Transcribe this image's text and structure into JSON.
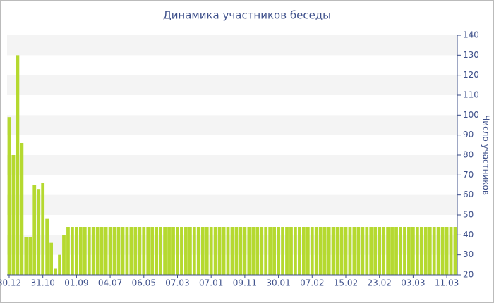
{
  "chart_data": {
    "type": "bar",
    "title": "Динамика участников беседы",
    "y_label": "Число участников",
    "categories": [
      "30.12",
      null,
      null,
      null,
      null,
      null,
      null,
      null,
      "31.10",
      null,
      null,
      null,
      null,
      null,
      null,
      null,
      "01.09",
      null,
      null,
      null,
      null,
      null,
      null,
      null,
      "04.07",
      null,
      null,
      null,
      null,
      null,
      null,
      null,
      "06.05",
      null,
      null,
      null,
      null,
      null,
      null,
      null,
      "07.03",
      null,
      null,
      null,
      null,
      null,
      null,
      null,
      "07.01",
      null,
      null,
      null,
      null,
      null,
      null,
      null,
      "09.11",
      null,
      null,
      null,
      null,
      null,
      null,
      null,
      "30.01",
      null,
      null,
      null,
      null,
      null,
      null,
      null,
      "07.02",
      null,
      null,
      null,
      null,
      null,
      null,
      null,
      "15.02",
      null,
      null,
      null,
      null,
      null,
      null,
      null,
      "23.02",
      null,
      null,
      null,
      null,
      null,
      null,
      null,
      "03.03",
      null,
      null,
      null,
      null,
      null,
      null,
      null,
      "11.03",
      null,
      null
    ],
    "values": [
      99,
      80,
      130,
      86,
      39,
      39,
      65,
      63,
      66,
      48,
      36,
      23,
      30,
      40,
      44,
      44,
      44,
      44,
      44,
      44,
      44,
      44,
      44,
      44,
      44,
      44,
      44,
      44,
      44,
      44,
      44,
      44,
      44,
      44,
      44,
      44,
      44,
      44,
      44,
      44,
      44,
      44,
      44,
      44,
      44,
      44,
      44,
      44,
      44,
      44,
      44,
      44,
      44,
      44,
      44,
      44,
      44,
      44,
      44,
      44,
      44,
      44,
      44,
      44,
      44,
      44,
      44,
      44,
      44,
      44,
      44,
      44,
      44,
      44,
      44,
      44,
      44,
      44,
      44,
      44,
      44,
      44,
      44,
      44,
      44,
      44,
      44,
      44,
      44,
      44,
      44,
      44,
      44,
      44,
      44,
      44,
      44,
      44,
      44,
      44,
      44,
      44,
      44,
      44,
      44,
      44,
      44
    ],
    "color": "#b5d930",
    "ylim": [
      20,
      140
    ],
    "yticks": [
      20,
      30,
      40,
      50,
      60,
      70,
      80,
      90,
      100,
      110,
      120,
      130,
      140
    ],
    "y_axis_side": "right",
    "grid": true
  }
}
